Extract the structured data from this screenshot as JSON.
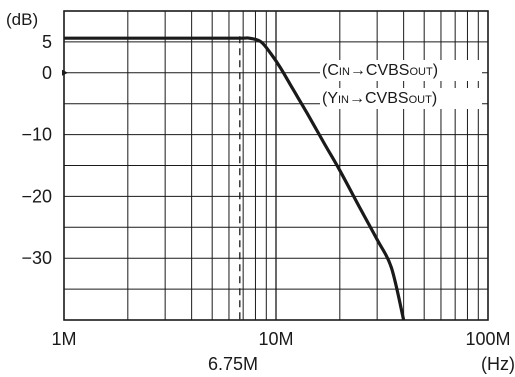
{
  "chart_data": {
    "type": "line",
    "x_scale": "log",
    "y_unit_label": "(dB)",
    "x_unit_label": "(Hz)",
    "xlim": [
      1000000,
      100000000
    ],
    "ylim": [
      -40,
      10
    ],
    "grid": true,
    "x_ticks": [
      {
        "value": 1000000,
        "label": "1M"
      },
      {
        "value": 10000000,
        "label": "10M"
      },
      {
        "value": 100000000,
        "label": "100M"
      }
    ],
    "y_ticks": [
      {
        "value": 5,
        "label": "5"
      },
      {
        "value": 0,
        "label": "0"
      },
      {
        "value": -10,
        "label": "−10"
      },
      {
        "value": -20,
        "label": "−20"
      },
      {
        "value": -30,
        "label": "−30"
      }
    ],
    "marker": {
      "value": 6750000,
      "label": "6.75M",
      "style": "dashed"
    },
    "legend": [
      {
        "open": "(C",
        "sub": "IN",
        "mid": "→CVBS",
        "sub2": "OUT",
        "close": ")"
      },
      {
        "open": "(Y",
        "sub": "IN",
        "mid": "→CVBS",
        "sub2": "OUT",
        "close": ")"
      }
    ],
    "series": [
      {
        "x": [
          1000000,
          2000000,
          4000000,
          6750000,
          7500000,
          8500000,
          9500000,
          10500000,
          12000000,
          14000000,
          17000000,
          20000000,
          25000000,
          30000000,
          35000000,
          40000000
        ],
        "y": [
          5.6,
          5.6,
          5.6,
          5.6,
          5.6,
          5.0,
          3.0,
          0.8,
          -2.6,
          -6.5,
          -11.6,
          -15.8,
          -22.0,
          -27.0,
          -31.5,
          -40.0
        ]
      }
    ]
  }
}
